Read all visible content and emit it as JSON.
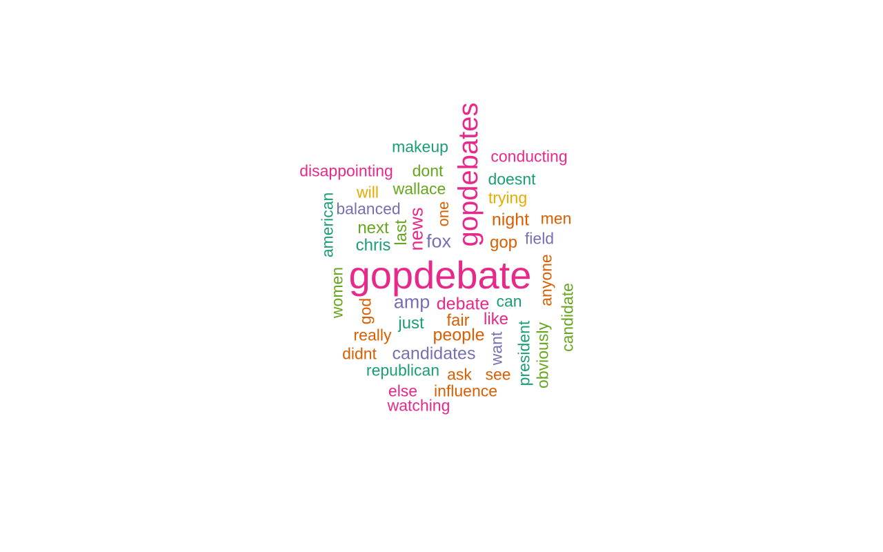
{
  "colors": {
    "pink": "#e7298a",
    "teal": "#1b9e77",
    "orange": "#d95f02",
    "purple": "#7570b3",
    "green": "#66a61e",
    "yellow": "#e6ab02"
  },
  "words": {
    "gopdebate": "gopdebate",
    "gopdebates": "gopdebates",
    "makeup": "makeup",
    "conducting": "conducting",
    "disappointing": "disappointing",
    "dont": "dont",
    "doesnt": "doesnt",
    "will": "will",
    "wallace": "wallace",
    "trying": "trying",
    "american": "american",
    "balanced": "balanced",
    "one": "one",
    "night": "night",
    "men": "men",
    "next": "next",
    "last": "last",
    "news": "news",
    "fox": "fox",
    "field": "field",
    "gop": "gop",
    "chris": "chris",
    "anyone": "anyone",
    "women": "women",
    "candidate": "candidate",
    "amp": "amp",
    "debate": "debate",
    "can": "can",
    "god": "god",
    "just": "just",
    "fair": "fair",
    "like": "like",
    "president": "president",
    "obviously": "obviously",
    "really": "really",
    "people": "people",
    "want": "want",
    "didnt": "didnt",
    "candidates": "candidates",
    "republican": "republican",
    "ask": "ask",
    "see": "see",
    "else": "else",
    "influence": "influence",
    "watching": "watching"
  }
}
